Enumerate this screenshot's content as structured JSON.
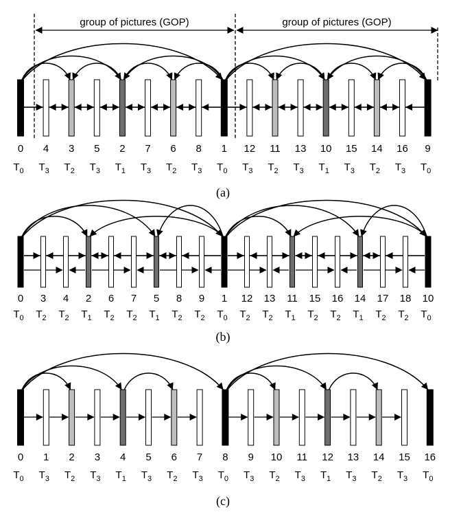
{
  "panels": [
    {
      "id": "a",
      "caption": "(a)",
      "gop_label": "group of pictures (GOP)",
      "frames": [
        {
          "num": "0",
          "layer": "0",
          "shade": "black"
        },
        {
          "num": "4",
          "layer": "3",
          "shade": "white"
        },
        {
          "num": "3",
          "layer": "2",
          "shade": "light"
        },
        {
          "num": "5",
          "layer": "3",
          "shade": "white"
        },
        {
          "num": "2",
          "layer": "1",
          "shade": "dark"
        },
        {
          "num": "7",
          "layer": "3",
          "shade": "white"
        },
        {
          "num": "6",
          "layer": "2",
          "shade": "light"
        },
        {
          "num": "8",
          "layer": "3",
          "shade": "white"
        },
        {
          "num": "1",
          "layer": "0",
          "shade": "black"
        },
        {
          "num": "12",
          "layer": "3",
          "shade": "white"
        },
        {
          "num": "11",
          "layer": "2",
          "shade": "light"
        },
        {
          "num": "13",
          "layer": "3",
          "shade": "white"
        },
        {
          "num": "10",
          "layer": "1",
          "shade": "dark"
        },
        {
          "num": "15",
          "layer": "3",
          "shade": "white"
        },
        {
          "num": "14",
          "layer": "2",
          "shade": "light"
        },
        {
          "num": "16",
          "layer": "3",
          "shade": "white"
        },
        {
          "num": "9",
          "layer": "0",
          "shade": "black"
        }
      ]
    },
    {
      "id": "b",
      "caption": "(b)",
      "frames": [
        {
          "num": "0",
          "layer": "0",
          "shade": "black"
        },
        {
          "num": "3",
          "layer": "2",
          "shade": "white"
        },
        {
          "num": "4",
          "layer": "2",
          "shade": "white"
        },
        {
          "num": "2",
          "layer": "1",
          "shade": "dark"
        },
        {
          "num": "6",
          "layer": "2",
          "shade": "white"
        },
        {
          "num": "7",
          "layer": "2",
          "shade": "white"
        },
        {
          "num": "5",
          "layer": "1",
          "shade": "dark"
        },
        {
          "num": "8",
          "layer": "2",
          "shade": "white"
        },
        {
          "num": "9",
          "layer": "2",
          "shade": "white"
        },
        {
          "num": "1",
          "layer": "0",
          "shade": "black"
        },
        {
          "num": "12",
          "layer": "2",
          "shade": "white"
        },
        {
          "num": "13",
          "layer": "2",
          "shade": "white"
        },
        {
          "num": "11",
          "layer": "1",
          "shade": "dark"
        },
        {
          "num": "15",
          "layer": "2",
          "shade": "white"
        },
        {
          "num": "16",
          "layer": "2",
          "shade": "white"
        },
        {
          "num": "14",
          "layer": "1",
          "shade": "dark"
        },
        {
          "num": "17",
          "layer": "2",
          "shade": "white"
        },
        {
          "num": "18",
          "layer": "2",
          "shade": "white"
        },
        {
          "num": "10",
          "layer": "0",
          "shade": "black"
        }
      ]
    },
    {
      "id": "c",
      "caption": "(c)",
      "frames": [
        {
          "num": "0",
          "layer": "0",
          "shade": "black"
        },
        {
          "num": "1",
          "layer": "3",
          "shade": "white"
        },
        {
          "num": "2",
          "layer": "2",
          "shade": "light"
        },
        {
          "num": "3",
          "layer": "3",
          "shade": "white"
        },
        {
          "num": "4",
          "layer": "1",
          "shade": "dark"
        },
        {
          "num": "5",
          "layer": "3",
          "shade": "white"
        },
        {
          "num": "6",
          "layer": "2",
          "shade": "light"
        },
        {
          "num": "7",
          "layer": "3",
          "shade": "white"
        },
        {
          "num": "8",
          "layer": "0",
          "shade": "black"
        },
        {
          "num": "9",
          "layer": "3",
          "shade": "white"
        },
        {
          "num": "10",
          "layer": "2",
          "shade": "light"
        },
        {
          "num": "11",
          "layer": "3",
          "shade": "white"
        },
        {
          "num": "12",
          "layer": "1",
          "shade": "dark"
        },
        {
          "num": "13",
          "layer": "3",
          "shade": "white"
        },
        {
          "num": "14",
          "layer": "2",
          "shade": "light"
        },
        {
          "num": "15",
          "layer": "3",
          "shade": "white"
        },
        {
          "num": "16",
          "layer": "0",
          "shade": "black"
        }
      ]
    }
  ],
  "colors": {
    "black": "#000000",
    "dark": "#6e6e6e",
    "light": "#bdbdbd",
    "white": "#ffffff",
    "line": "#000000"
  }
}
